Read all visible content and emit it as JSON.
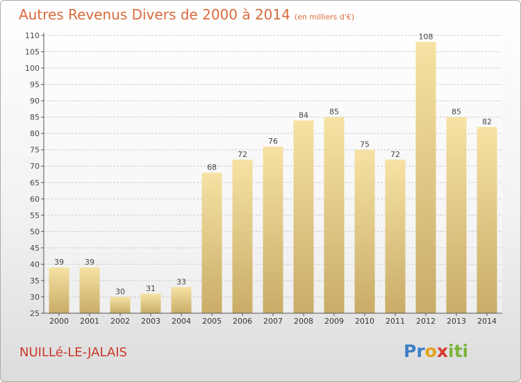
{
  "title": "Autres Revenus Divers de 2000 à 2014",
  "subtitle": "(en milliers d'€)",
  "town": "NUILLé-LE-JALAIS",
  "logo": {
    "letters": [
      "P",
      "r",
      "o",
      "x",
      "i",
      "t",
      "i"
    ],
    "colors": [
      "#3b7fc4",
      "#3b7fc4",
      "#e3a21a",
      "#d6382b",
      "#7bb43a",
      "#7bb43a",
      "#7bb43a"
    ]
  },
  "colors": {
    "title": "#d96a3a",
    "town": "#c8392a",
    "bar_top": "#f6e2a4",
    "bar_bottom": "#c9ac67",
    "grid": "#cccccc"
  },
  "chart_data": {
    "type": "bar",
    "categories": [
      "2000",
      "2001",
      "2002",
      "2003",
      "2004",
      "2005",
      "2006",
      "2007",
      "2008",
      "2009",
      "2010",
      "2011",
      "2012",
      "2013",
      "2014"
    ],
    "values": [
      39,
      39,
      30,
      31,
      33,
      68,
      72,
      76,
      84,
      85,
      75,
      72,
      108,
      85,
      82
    ],
    "data_labels": [
      "39",
      "39",
      "30",
      "31",
      "33",
      "68",
      "72",
      "76",
      "84",
      "85",
      "75",
      "72",
      "108",
      "85",
      "82"
    ],
    "yticks": [
      "25",
      "30",
      "35",
      "40",
      "45",
      "50",
      "55",
      "60",
      "65",
      "70",
      "75",
      "80",
      "85",
      "90",
      "95",
      "100",
      "105",
      "110"
    ],
    "ylim": [
      25,
      110
    ],
    "grid": true
  }
}
